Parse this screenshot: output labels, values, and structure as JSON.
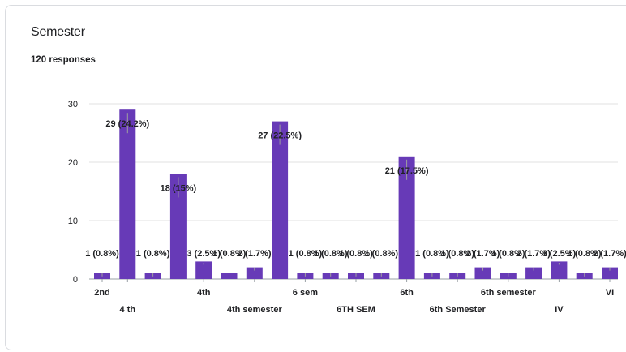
{
  "card": {
    "title": "Semester",
    "responses": "120 responses"
  },
  "colors": {
    "bar": "#673ab7",
    "grid": "#e0e0e0",
    "leader": "#9e9e9e"
  },
  "chart_data": {
    "type": "bar",
    "title": "Semester",
    "subtitle": "120 responses",
    "ylim": [
      0,
      30
    ],
    "yticks": [
      0,
      10,
      20,
      30
    ],
    "grid": true,
    "categories": [
      "2nd",
      "4 th",
      "4th",
      "4th semester",
      "6 sem",
      "6TH SEM",
      "6th",
      "6th Semester",
      "6th semester",
      "IV",
      "VI"
    ],
    "values": [
      1,
      29,
      1,
      18,
      3,
      1,
      2,
      27,
      1,
      1,
      1,
      1,
      21,
      1,
      1,
      2,
      1,
      2,
      3,
      1,
      2
    ],
    "labels": [
      "1 (0.8%)",
      "29 (24.2%)",
      "1 (0.8%)",
      "18 (15%)",
      "3 (2.5%)",
      "1 (0.8%)",
      "2 (1.7%)",
      "27 (22.5%)",
      "1 (0.8%)",
      "1 (0.8%)",
      "1 (0.8%)",
      "1 (0.8%)",
      "21 (17.5%)",
      "1 (0.8%)",
      "1 (0.8%)",
      "2 (1.7%)",
      "1 (0.8%)",
      "2 (1.7%)",
      "3 (2.5%)",
      "1 (0.8%)",
      "2 (1.7%)"
    ],
    "visible_x_labels": [
      {
        "bar": 0,
        "text": "2nd",
        "row": 0
      },
      {
        "bar": 1,
        "text": "4 th",
        "row": 1
      },
      {
        "bar": 4,
        "text": "4th",
        "row": 0
      },
      {
        "bar": 6,
        "text": "4th semester",
        "row": 1
      },
      {
        "bar": 8,
        "text": "6 sem",
        "row": 0
      },
      {
        "bar": 10,
        "text": "6TH SEM",
        "row": 1
      },
      {
        "bar": 12,
        "text": "6th",
        "row": 0
      },
      {
        "bar": 14,
        "text": "6th Semester",
        "row": 1
      },
      {
        "bar": 16,
        "text": "6th semester",
        "row": 0
      },
      {
        "bar": 18,
        "text": "IV",
        "row": 1
      },
      {
        "bar": 20,
        "text": "VI",
        "row": 0
      }
    ]
  }
}
